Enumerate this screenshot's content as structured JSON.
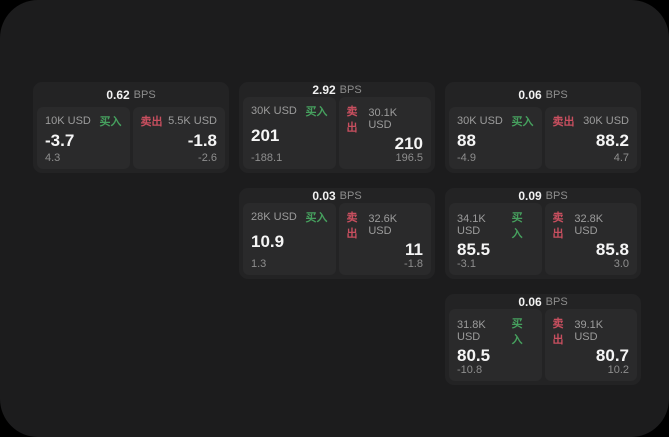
{
  "labels": {
    "unit": "BPS",
    "buy": "买入",
    "sell": "卖出"
  },
  "colors": {
    "background": "#000000",
    "surface": "#1c1c1d",
    "card": "#232324",
    "panel": "#2a2a2b",
    "buy_green": "#46a05e",
    "sell_red": "#c84f5f",
    "text_primary": "#f5f5f5",
    "text_secondary": "#9c9c9c"
  },
  "cards": [
    {
      "col": 1,
      "row": 1,
      "bps": "0.62",
      "buy": {
        "amount": "10K USD",
        "value": "-3.7",
        "delta": "4.3"
      },
      "sell": {
        "amount": "5.5K USD",
        "value": "-1.8",
        "delta": "-2.6"
      }
    },
    {
      "col": 2,
      "row": 1,
      "bps": "2.92",
      "buy": {
        "amount": "30K USD",
        "value": "201",
        "delta": "-188.1"
      },
      "sell": {
        "amount": "30.1K USD",
        "value": "210",
        "delta": "196.5"
      }
    },
    {
      "col": 3,
      "row": 1,
      "bps": "0.06",
      "buy": {
        "amount": "30K USD",
        "value": "88",
        "delta": "-4.9"
      },
      "sell": {
        "amount": "30K USD",
        "value": "88.2",
        "delta": "4.7"
      }
    },
    {
      "col": 2,
      "row": 2,
      "bps": "0.03",
      "buy": {
        "amount": "28K USD",
        "value": "10.9",
        "delta": "1.3"
      },
      "sell": {
        "amount": "32.6K USD",
        "value": "11",
        "delta": "-1.8"
      }
    },
    {
      "col": 3,
      "row": 2,
      "bps": "0.09",
      "buy": {
        "amount": "34.1K USD",
        "value": "85.5",
        "delta": "-3.1"
      },
      "sell": {
        "amount": "32.8K USD",
        "value": "85.8",
        "delta": "3.0"
      }
    },
    {
      "col": 3,
      "row": 3,
      "bps": "0.06",
      "buy": {
        "amount": "31.8K USD",
        "value": "80.5",
        "delta": "-10.8"
      },
      "sell": {
        "amount": "39.1K USD",
        "value": "80.7",
        "delta": "10.2"
      }
    }
  ]
}
